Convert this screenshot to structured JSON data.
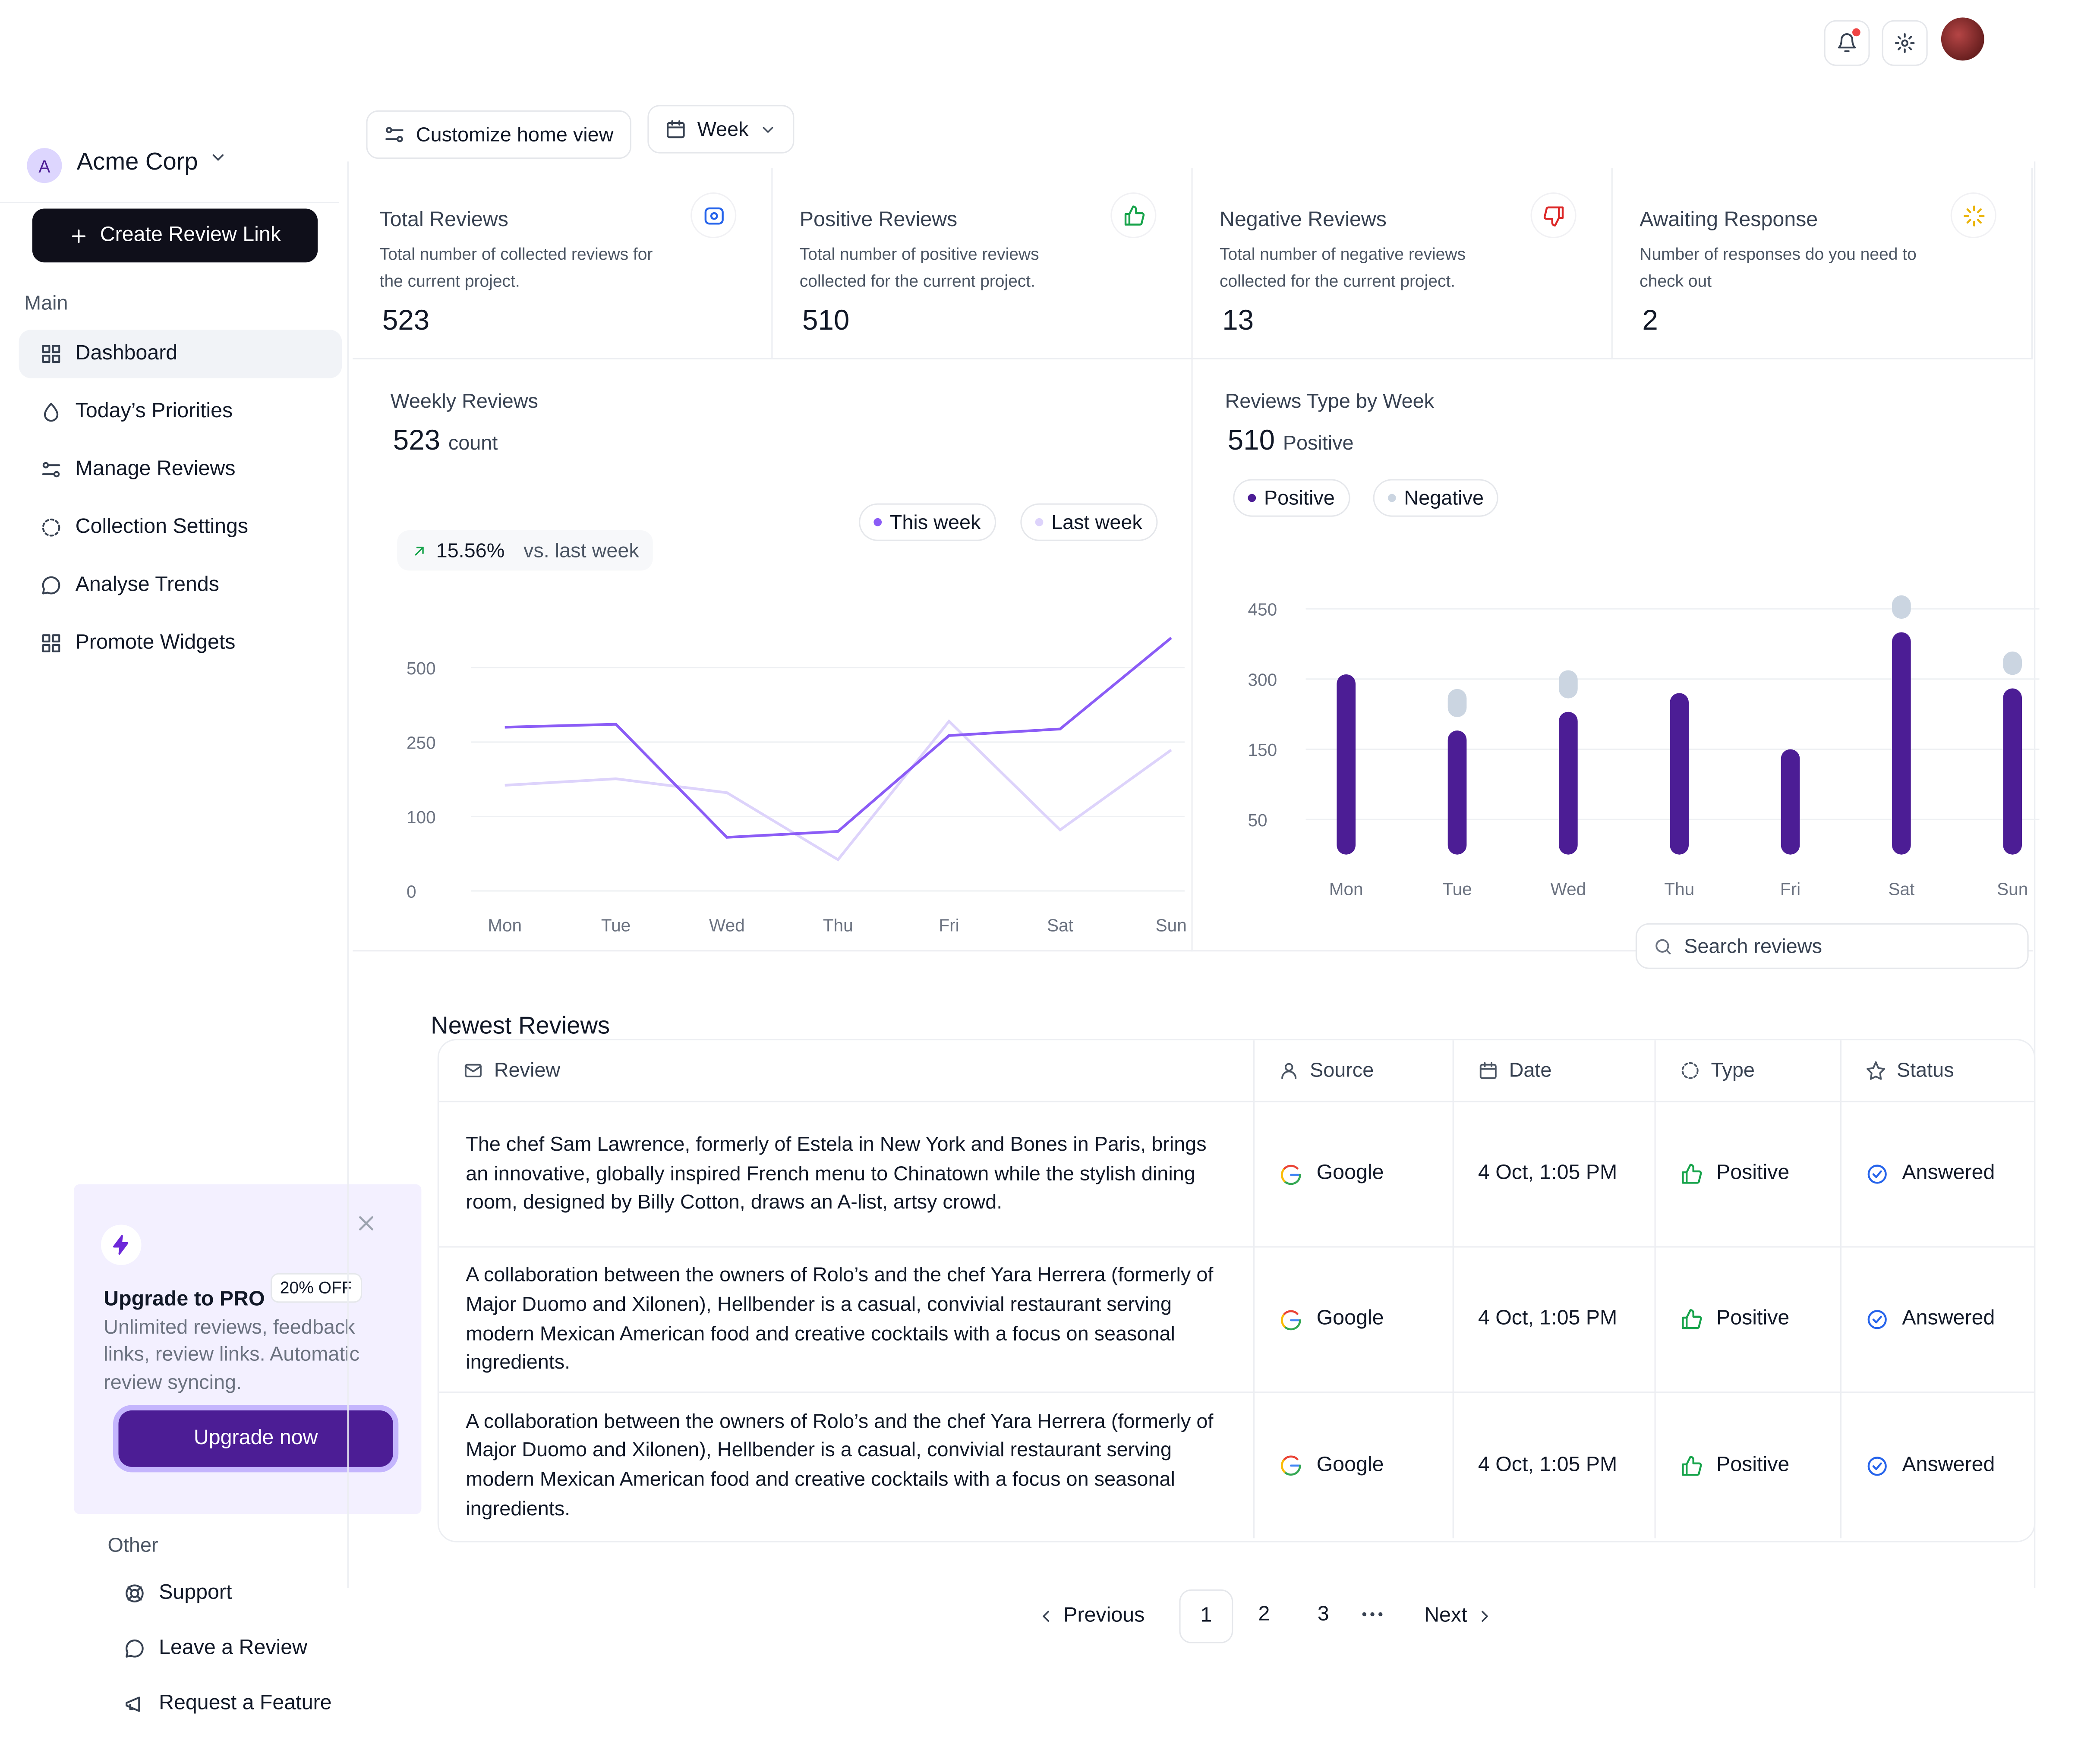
{
  "workspace": {
    "initial": "A",
    "name": "Acme Corp"
  },
  "sidebar": {
    "create_button": "Create Review Link",
    "main_heading": "Main",
    "nav": [
      "Dashboard",
      "Today’s Priorities",
      "Manage Reviews",
      "Collection Settings",
      "Analyse Trends",
      "Promote Widgets"
    ],
    "upgrade": {
      "title": "Upgrade to PRO",
      "badge": "20% OFF",
      "text": "Unlimited reviews, feedback links, review links. Automatic review syncing.",
      "button": "Upgrade now"
    },
    "other_heading": "Other",
    "other": [
      "Support",
      "Leave a Review",
      "Request a Feature"
    ]
  },
  "toolbar": {
    "customize": "Customize home view",
    "period": "Week"
  },
  "stats": [
    {
      "title": "Total Reviews",
      "description": "Total number of collected reviews for the current project.",
      "value": 523
    },
    {
      "title": "Positive Reviews",
      "description": "Total number of positive reviews collected for the current project.",
      "value": 510
    },
    {
      "title": "Negative Reviews",
      "description": "Total number of negative reviews collected for the current project.",
      "value": 13
    },
    {
      "title": "Awaiting Response",
      "description": "Number of responses do you need to check out",
      "value": 2
    }
  ],
  "chart_data": [
    {
      "type": "line",
      "title": "Weekly Reviews",
      "headline_value": 523,
      "headline_unit": "count",
      "change": "15.56%",
      "change_label": "vs. last week",
      "categories": [
        "Mon",
        "Tue",
        "Wed",
        "Thu",
        "Fri",
        "Sat",
        "Sun"
      ],
      "series": [
        {
          "name": "This week",
          "color": "#8b5cf6",
          "values": [
            300,
            310,
            72,
            80,
            272,
            294,
            600
          ]
        },
        {
          "name": "Last week",
          "color": "#ddd3fb",
          "values": [
            163,
            176,
            148,
            42,
            320,
            82,
            234
          ]
        }
      ],
      "ylim": [
        0,
        600
      ],
      "yticks": [
        0,
        100,
        250,
        500
      ],
      "grid": true
    },
    {
      "type": "stacked_bar",
      "title": "Reviews Type by Week",
      "headline_value": 510,
      "headline_unit": "Positive",
      "categories": [
        "Mon",
        "Tue",
        "Wed",
        "Thu",
        "Fri",
        "Sat",
        "Sun"
      ],
      "series": [
        {
          "name": "Positive",
          "color": "#4c1d95",
          "values": [
            310,
            190,
            230,
            270,
            150,
            400,
            280
          ]
        },
        {
          "name": "Negative",
          "color": "#cbd5e1",
          "values": [
            0,
            60,
            60,
            0,
            0,
            50,
            50
          ]
        }
      ],
      "ylim": [
        0,
        500
      ],
      "yticks": [
        50,
        150,
        300,
        450
      ],
      "grid": true
    }
  ],
  "reviews": {
    "title": "Newest Reviews",
    "search_placeholder": "Search reviews",
    "columns": [
      "Review",
      "Source",
      "Date",
      "Type",
      "Status"
    ],
    "rows": [
      [
        "The chef Sam Lawrence, formerly of Estela in New York and Bones in Paris, brings an innovative, globally inspired French menu to Chinatown while the stylish dining room, designed by Billy Cotton, draws an A-list, artsy crowd.",
        "Google",
        "4 Oct, 1:05 PM",
        "Positive",
        "Answered"
      ],
      [
        "A collaboration between the owners of Rolo’s and the chef Yara Herrera (formerly of Major Duomo and Xilonen), Hellbender is a casual, convivial restaurant serving modern Mexican American food and creative cocktails with a focus on seasonal ingredients.",
        "Google",
        "4 Oct, 1:05 PM",
        "Positive",
        "Answered"
      ],
      [
        "A collaboration between the owners of Rolo’s and the chef Yara Herrera (formerly of Major Duomo and Xilonen), Hellbender is a casual, convivial restaurant serving modern Mexican American food and creative cocktails with a focus on seasonal ingredients.",
        "Google",
        "4 Oct, 1:05 PM",
        "Positive",
        "Answered"
      ]
    ]
  },
  "pagination": {
    "previous": "Previous",
    "pages": [
      1,
      2,
      3
    ],
    "next": "Next"
  }
}
